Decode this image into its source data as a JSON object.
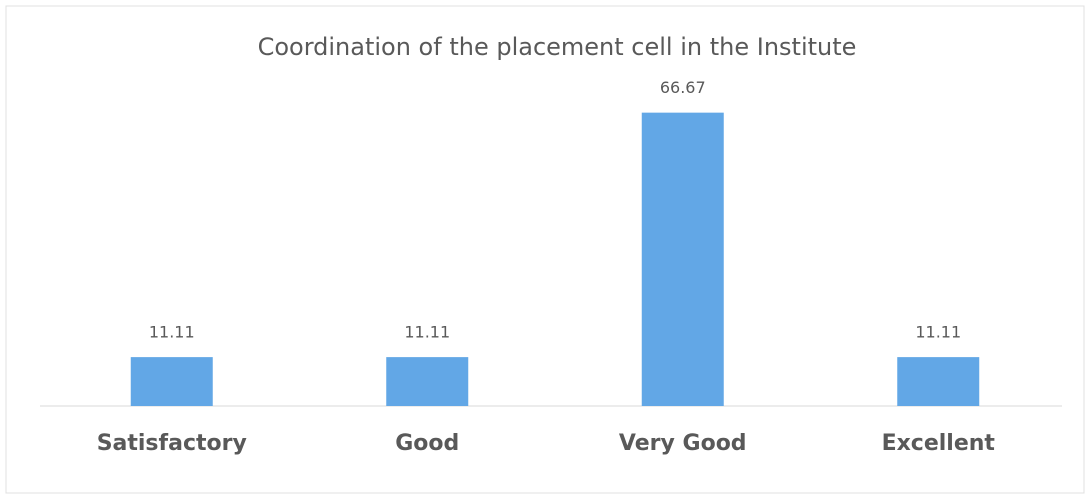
{
  "chart_data": {
    "type": "bar",
    "title": "Coordination of the placement cell in the Institute",
    "categories": [
      "Satisfactory",
      "Good",
      "Very Good",
      "Excellent"
    ],
    "values": [
      11.11,
      11.11,
      66.67,
      11.11
    ],
    "color": "#62a7e6"
  }
}
